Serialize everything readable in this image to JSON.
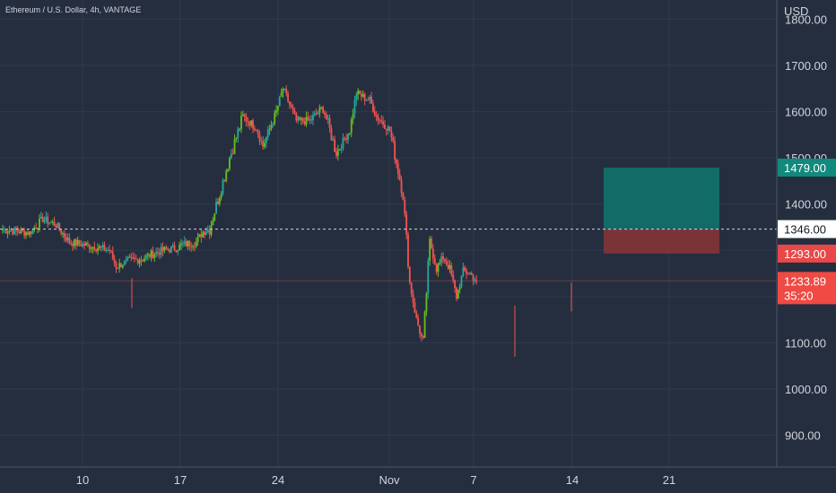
{
  "header": {
    "symbol_title": "Ethereum / U.S. Dollar, 4h, VANTAGE",
    "currency": "USD"
  },
  "colors": {
    "background": "#252e3f",
    "grid": "#2f3a4c",
    "up": "#26a69a",
    "up_bright": "#66bb22",
    "down": "#ef5350",
    "axis_text": "#d1d4dc",
    "target_zone": "#126b66",
    "stop_zone": "#7a3438",
    "target_tag": "#12897d",
    "stop_tag": "#e84848",
    "entry_tag_bg": "#ffffff",
    "last_price_tag": "#ef4a43"
  },
  "chart_data": {
    "type": "candlestick",
    "symbol": "Ethereum / U.S. Dollar",
    "timeframe": "4h",
    "source": "VANTAGE",
    "ylim": [
      845,
      1810
    ],
    "y_ticks": [
      "900.00",
      "1000.00",
      "1100.00",
      "1200.00",
      "1300.00",
      "1400.00",
      "1500.00",
      "1600.00",
      "1700.00",
      "1800.00"
    ],
    "x_ticks": [
      "10",
      "17",
      "24",
      "Nov",
      "7",
      "14",
      "21"
    ],
    "entry_price": "1346.00",
    "target_price": "1479.00",
    "stop_price": "1293.00",
    "last_price": "1233.89",
    "countdown": "35:20",
    "close_path": [
      [
        0,
        1345
      ],
      [
        4,
        1338
      ],
      [
        6,
        1368
      ],
      [
        8,
        1355
      ],
      [
        10,
        1318
      ],
      [
        13,
        1310
      ],
      [
        16,
        1300
      ],
      [
        17,
        1265
      ],
      [
        19,
        1278
      ],
      [
        21,
        1282
      ],
      [
        22,
        1290
      ],
      [
        24,
        1300
      ],
      [
        26,
        1305
      ],
      [
        27,
        1312
      ],
      [
        29,
        1318
      ],
      [
        30,
        1340
      ],
      [
        31,
        1346
      ],
      [
        34,
        1500
      ],
      [
        36,
        1590
      ],
      [
        38,
        1565
      ],
      [
        39,
        1525
      ],
      [
        41,
        1600
      ],
      [
        42,
        1650
      ],
      [
        44,
        1580
      ],
      [
        46,
        1580
      ],
      [
        48,
        1610
      ],
      [
        50,
        1510
      ],
      [
        52,
        1560
      ],
      [
        53,
        1640
      ],
      [
        55,
        1625
      ],
      [
        56,
        1590
      ],
      [
        58,
        1560
      ],
      [
        60,
        1420
      ],
      [
        61,
        1230
      ],
      [
        62,
        1150
      ],
      [
        63,
        1100
      ],
      [
        64,
        1320
      ],
      [
        65,
        1260
      ],
      [
        66,
        1285
      ],
      [
        67,
        1260
      ],
      [
        68,
        1200
      ],
      [
        69,
        1255
      ],
      [
        70,
        1250
      ],
      [
        71,
        1233
      ]
    ],
    "target_zone": {
      "from_bar": 72,
      "to_bar": 85,
      "top": 1479,
      "mid": 1346,
      "bottom": 1293
    }
  }
}
